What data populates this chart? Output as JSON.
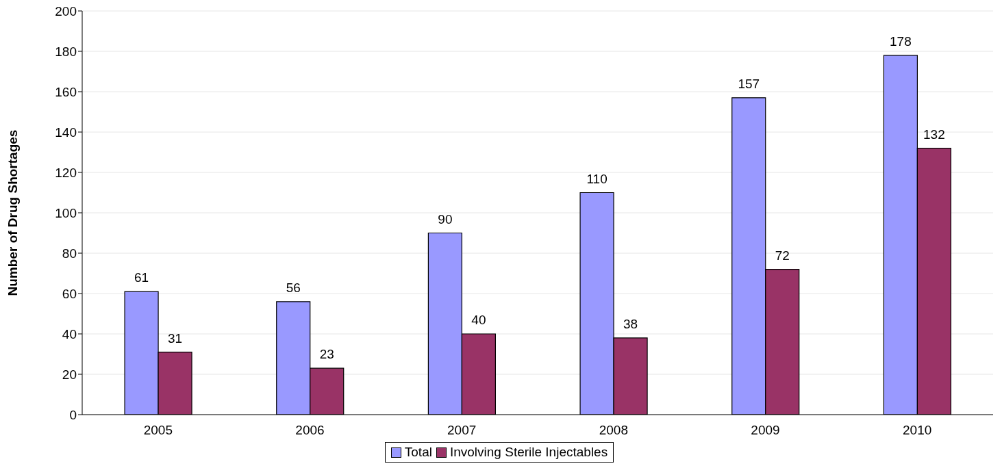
{
  "chart_data": {
    "type": "bar",
    "ylabel": "Number of Drug Shortages",
    "categories": [
      "2005",
      "2006",
      "2007",
      "2008",
      "2009",
      "2010"
    ],
    "series": [
      {
        "name": "Total",
        "color": "#9999ff",
        "values": [
          61,
          56,
          90,
          110,
          157,
          178
        ]
      },
      {
        "name": "Involving Sterile Injectables",
        "color": "#993366",
        "values": [
          31,
          23,
          40,
          38,
          72,
          132
        ]
      }
    ],
    "ylim": [
      0,
      200
    ],
    "yticks": [
      0,
      20,
      40,
      60,
      80,
      100,
      120,
      140,
      160,
      180,
      200
    ],
    "grid": "y",
    "legend": "bottom",
    "data_labels": true
  }
}
